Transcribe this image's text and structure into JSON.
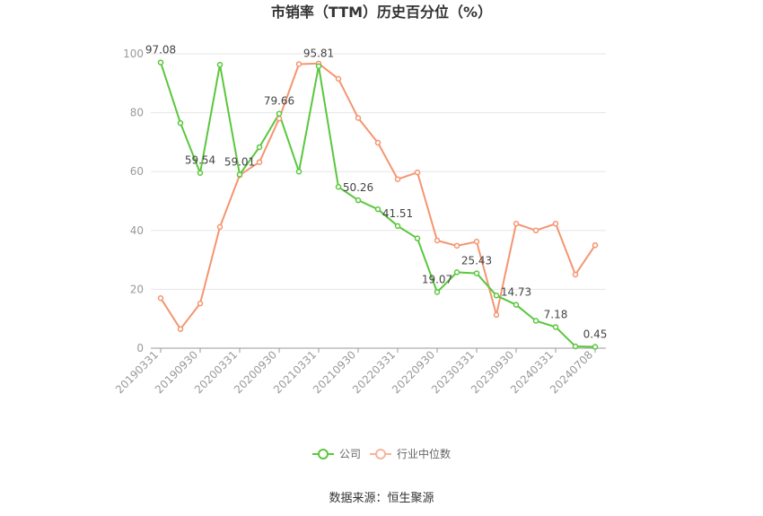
{
  "chart_data": {
    "type": "line",
    "title": "市销率（TTM）历史百分位（%）",
    "source": "数据来源：恒生聚源",
    "x_tick_labels": [
      "20190331",
      "20190930",
      "20200331",
      "20200930",
      "20210331",
      "20210930",
      "20220331",
      "20220930",
      "20230331",
      "20230930",
      "20240331",
      "20240708"
    ],
    "x_tick_indices": [
      0,
      2,
      4,
      6,
      8,
      10,
      12,
      14,
      16,
      18,
      20,
      22
    ],
    "y_ticks": [
      0,
      20,
      40,
      60,
      80,
      100
    ],
    "ylim": [
      0,
      100
    ],
    "grid": true,
    "legend_position": "bottom",
    "colors": {
      "company": "#5ac73e",
      "industry": "#f59570"
    },
    "series": [
      {
        "name": "公司",
        "values": [
          97.08,
          76.5,
          59.54,
          96.3,
          59.01,
          68.3,
          79.66,
          60.0,
          95.81,
          54.8,
          50.26,
          47.2,
          41.51,
          37.3,
          19.07,
          25.8,
          25.43,
          17.9,
          14.73,
          9.3,
          7.18,
          0.6,
          0.45
        ],
        "labels": {
          "0": "97.08",
          "2": "59.54",
          "4": "59.01",
          "6": "79.66",
          "8": "95.81",
          "10": "50.26",
          "12": "41.51",
          "14": "19.07",
          "16": "25.43",
          "18": "14.73",
          "20": "7.18",
          "22": "0.45"
        }
      },
      {
        "name": "行业中位数",
        "values": [
          17.0,
          6.5,
          15.2,
          41.2,
          58.8,
          63.2,
          78.0,
          96.5,
          96.7,
          91.5,
          78.2,
          69.8,
          57.4,
          59.7,
          36.6,
          34.8,
          36.2,
          11.3,
          42.3,
          40.0,
          42.3,
          25.0,
          35.0
        ]
      }
    ]
  }
}
